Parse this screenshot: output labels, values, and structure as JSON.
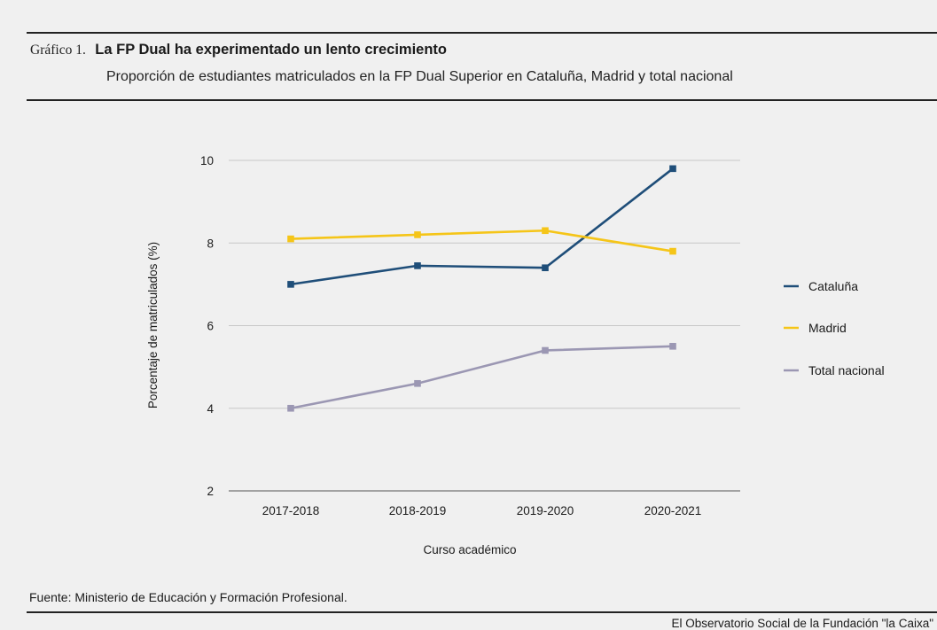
{
  "header": {
    "label": "Gráfico 1.",
    "title": "La FP Dual ha experimentado un lento crecimiento",
    "subtitle": "Proporción de estudiantes matriculados en la FP Dual Superior en Cataluña, Madrid y total nacional"
  },
  "footer": {
    "source": "Fuente: Ministerio de Educación y Formación Profesional.",
    "credit": "El Observatorio Social de la Fundación \"la Caixa\""
  },
  "chart_data": {
    "type": "line",
    "title": "La FP Dual ha experimentado un lento crecimiento",
    "subtitle": "Proporción de estudiantes matriculados en la FP Dual Superior en Cataluña, Madrid y total nacional",
    "xlabel": "Curso académico",
    "ylabel": "Porcentaje de matriculados (%)",
    "categories": [
      "2017-2018",
      "2018-2019",
      "2019-2020",
      "2020-2021"
    ],
    "ylim": [
      2,
      10
    ],
    "yticks": [
      2,
      4,
      6,
      8,
      10
    ],
    "grid": true,
    "legend_position": "right",
    "series": [
      {
        "name": "Cataluña",
        "color": "#1f4e79",
        "values": [
          7.0,
          7.45,
          7.4,
          9.8
        ]
      },
      {
        "name": "Madrid",
        "color": "#f5c518",
        "values": [
          8.1,
          8.2,
          8.3,
          7.8
        ]
      },
      {
        "name": "Total nacional",
        "color": "#9b97b3",
        "values": [
          4.0,
          4.6,
          5.4,
          5.5
        ]
      }
    ]
  }
}
